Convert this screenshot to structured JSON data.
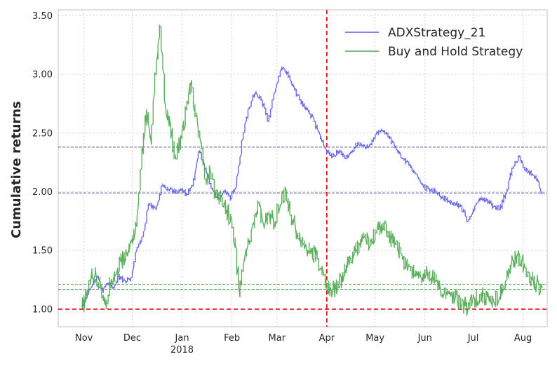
{
  "chart_data": {
    "type": "line",
    "title": "",
    "xlabel": "",
    "ylabel": "Cumulative returns",
    "ylim": [
      0.85,
      3.55
    ],
    "y_ticks": [
      1.0,
      1.5,
      2.0,
      2.5,
      3.0,
      3.5
    ],
    "y_tick_labels": [
      "1.00",
      "1.50",
      "2.00",
      "2.50",
      "3.00",
      "3.50"
    ],
    "x_range": [
      "2017-10-16",
      "2018-08-16"
    ],
    "x_ticks": [
      {
        "date": "2017-11-01",
        "label": "Nov",
        "sublabel": ""
      },
      {
        "date": "2017-12-01",
        "label": "Dec",
        "sublabel": ""
      },
      {
        "date": "2018-01-01",
        "label": "Jan",
        "sublabel": "2018"
      },
      {
        "date": "2018-02-01",
        "label": "Feb",
        "sublabel": ""
      },
      {
        "date": "2018-03-01",
        "label": "Mar",
        "sublabel": ""
      },
      {
        "date": "2018-04-01",
        "label": "Apr",
        "sublabel": ""
      },
      {
        "date": "2018-05-01",
        "label": "May",
        "sublabel": ""
      },
      {
        "date": "2018-06-01",
        "label": "Jun",
        "sublabel": ""
      },
      {
        "date": "2018-07-01",
        "label": "Jul",
        "sublabel": ""
      },
      {
        "date": "2018-08-01",
        "label": "Aug",
        "sublabel": ""
      }
    ],
    "grid": true,
    "legend_position": "top-right",
    "series": [
      {
        "name": "ADXStrategy_21",
        "color": "#5a5ae6",
        "points": [
          [
            "2017-10-31",
            1.0
          ],
          [
            "2017-11-03",
            1.1
          ],
          [
            "2017-11-07",
            1.22
          ],
          [
            "2017-11-10",
            1.28
          ],
          [
            "2017-11-13",
            1.15
          ],
          [
            "2017-11-16",
            1.22
          ],
          [
            "2017-11-20",
            1.18
          ],
          [
            "2017-11-23",
            1.28
          ],
          [
            "2017-11-27",
            1.24
          ],
          [
            "2017-12-01",
            1.27
          ],
          [
            "2017-12-04",
            1.5
          ],
          [
            "2017-12-08",
            1.62
          ],
          [
            "2017-12-12",
            1.9
          ],
          [
            "2017-12-16",
            1.85
          ],
          [
            "2017-12-20",
            2.05
          ],
          [
            "2017-12-24",
            2.02
          ],
          [
            "2017-12-28",
            2.0
          ],
          [
            "2018-01-01",
            2.02
          ],
          [
            "2018-01-04",
            1.98
          ],
          [
            "2018-01-08",
            2.05
          ],
          [
            "2018-01-12",
            2.35
          ],
          [
            "2018-01-16",
            2.2
          ],
          [
            "2018-01-20",
            2.02
          ],
          [
            "2018-01-24",
            1.95
          ],
          [
            "2018-01-28",
            2.0
          ],
          [
            "2018-02-01",
            1.95
          ],
          [
            "2018-02-04",
            2.05
          ],
          [
            "2018-02-08",
            2.45
          ],
          [
            "2018-02-12",
            2.72
          ],
          [
            "2018-02-16",
            2.85
          ],
          [
            "2018-02-20",
            2.78
          ],
          [
            "2018-02-24",
            2.6
          ],
          [
            "2018-02-28",
            2.85
          ],
          [
            "2018-03-04",
            3.05
          ],
          [
            "2018-03-08",
            3.02
          ],
          [
            "2018-03-12",
            2.88
          ],
          [
            "2018-03-16",
            2.78
          ],
          [
            "2018-03-20",
            2.7
          ],
          [
            "2018-03-24",
            2.62
          ],
          [
            "2018-03-28",
            2.48
          ],
          [
            "2018-04-01",
            2.35
          ],
          [
            "2018-04-05",
            2.3
          ],
          [
            "2018-04-09",
            2.35
          ],
          [
            "2018-04-13",
            2.28
          ],
          [
            "2018-04-17",
            2.35
          ],
          [
            "2018-04-21",
            2.42
          ],
          [
            "2018-04-25",
            2.38
          ],
          [
            "2018-04-29",
            2.4
          ],
          [
            "2018-05-03",
            2.5
          ],
          [
            "2018-05-07",
            2.52
          ],
          [
            "2018-05-11",
            2.45
          ],
          [
            "2018-05-15",
            2.35
          ],
          [
            "2018-05-19",
            2.28
          ],
          [
            "2018-05-23",
            2.22
          ],
          [
            "2018-05-27",
            2.15
          ],
          [
            "2018-05-31",
            2.05
          ],
          [
            "2018-06-04",
            2.02
          ],
          [
            "2018-06-08",
            2.0
          ],
          [
            "2018-06-12",
            1.96
          ],
          [
            "2018-06-16",
            1.92
          ],
          [
            "2018-06-20",
            1.9
          ],
          [
            "2018-06-24",
            1.88
          ],
          [
            "2018-06-28",
            1.75
          ],
          [
            "2018-07-02",
            1.85
          ],
          [
            "2018-07-06",
            1.95
          ],
          [
            "2018-07-10",
            1.92
          ],
          [
            "2018-07-14",
            1.88
          ],
          [
            "2018-07-18",
            1.85
          ],
          [
            "2018-07-22",
            2.0
          ],
          [
            "2018-07-26",
            2.2
          ],
          [
            "2018-07-30",
            2.3
          ],
          [
            "2018-08-03",
            2.18
          ],
          [
            "2018-08-07",
            2.15
          ],
          [
            "2018-08-11",
            2.08
          ],
          [
            "2018-08-13",
            1.98
          ]
        ]
      },
      {
        "name": "Buy and Hold Strategy",
        "color": "#4ca64c",
        "points": [
          [
            "2017-10-31",
            1.0
          ],
          [
            "2017-11-03",
            1.1
          ],
          [
            "2017-11-05",
            1.25
          ],
          [
            "2017-11-08",
            1.3
          ],
          [
            "2017-11-12",
            1.2
          ],
          [
            "2017-11-15",
            1.0
          ],
          [
            "2017-11-18",
            1.25
          ],
          [
            "2017-11-21",
            1.3
          ],
          [
            "2017-11-24",
            1.4
          ],
          [
            "2017-11-28",
            1.45
          ],
          [
            "2017-12-01",
            1.6
          ],
          [
            "2017-12-04",
            1.7
          ],
          [
            "2017-12-07",
            2.2
          ],
          [
            "2017-12-10",
            2.7
          ],
          [
            "2017-12-13",
            2.4
          ],
          [
            "2017-12-16",
            3.0
          ],
          [
            "2017-12-19",
            3.4
          ],
          [
            "2017-12-22",
            2.7
          ],
          [
            "2017-12-25",
            2.55
          ],
          [
            "2017-12-28",
            2.3
          ],
          [
            "2018-01-01",
            2.45
          ],
          [
            "2018-01-04",
            2.7
          ],
          [
            "2018-01-07",
            2.95
          ],
          [
            "2018-01-10",
            2.65
          ],
          [
            "2018-01-13",
            2.4
          ],
          [
            "2018-01-16",
            2.1
          ],
          [
            "2018-01-19",
            2.15
          ],
          [
            "2018-01-22",
            2.0
          ],
          [
            "2018-01-26",
            1.95
          ],
          [
            "2018-01-29",
            1.85
          ],
          [
            "2018-02-01",
            1.75
          ],
          [
            "2018-02-04",
            1.5
          ],
          [
            "2018-02-06",
            1.1
          ],
          [
            "2018-02-09",
            1.45
          ],
          [
            "2018-02-12",
            1.55
          ],
          [
            "2018-02-15",
            1.75
          ],
          [
            "2018-02-18",
            1.9
          ],
          [
            "2018-02-21",
            1.7
          ],
          [
            "2018-02-24",
            1.8
          ],
          [
            "2018-02-28",
            1.75
          ],
          [
            "2018-03-04",
            1.9
          ],
          [
            "2018-03-07",
            2.0
          ],
          [
            "2018-03-10",
            1.8
          ],
          [
            "2018-03-14",
            1.65
          ],
          [
            "2018-03-18",
            1.55
          ],
          [
            "2018-03-22",
            1.5
          ],
          [
            "2018-03-26",
            1.45
          ],
          [
            "2018-03-30",
            1.3
          ],
          [
            "2018-04-01",
            1.2
          ],
          [
            "2018-04-04",
            1.15
          ],
          [
            "2018-04-08",
            1.2
          ],
          [
            "2018-04-12",
            1.3
          ],
          [
            "2018-04-16",
            1.42
          ],
          [
            "2018-04-20",
            1.5
          ],
          [
            "2018-04-24",
            1.62
          ],
          [
            "2018-04-28",
            1.55
          ],
          [
            "2018-05-02",
            1.65
          ],
          [
            "2018-05-06",
            1.72
          ],
          [
            "2018-05-10",
            1.62
          ],
          [
            "2018-05-14",
            1.55
          ],
          [
            "2018-05-18",
            1.45
          ],
          [
            "2018-05-22",
            1.38
          ],
          [
            "2018-05-26",
            1.3
          ],
          [
            "2018-05-30",
            1.25
          ],
          [
            "2018-06-04",
            1.32
          ],
          [
            "2018-06-08",
            1.25
          ],
          [
            "2018-06-12",
            1.12
          ],
          [
            "2018-06-16",
            1.15
          ],
          [
            "2018-06-20",
            1.1
          ],
          [
            "2018-06-24",
            1.05
          ],
          [
            "2018-06-28",
            1.02
          ],
          [
            "2018-07-02",
            1.08
          ],
          [
            "2018-07-06",
            1.12
          ],
          [
            "2018-07-10",
            1.1
          ],
          [
            "2018-07-14",
            1.05
          ],
          [
            "2018-07-18",
            1.12
          ],
          [
            "2018-07-22",
            1.25
          ],
          [
            "2018-07-26",
            1.4
          ],
          [
            "2018-07-30",
            1.45
          ],
          [
            "2018-08-03",
            1.35
          ],
          [
            "2018-08-07",
            1.25
          ],
          [
            "2018-08-11",
            1.2
          ],
          [
            "2018-08-13",
            1.18
          ]
        ]
      }
    ],
    "reference_lines": [
      {
        "type": "horizontal",
        "y": 1.0,
        "color": "#e00000",
        "style": "dashed"
      },
      {
        "type": "vertical",
        "x": "2018-04-01",
        "color": "#e00000",
        "style": "dashed"
      },
      {
        "type": "horizontal",
        "y": 2.38,
        "color": "#1a1a80",
        "style": "dashed"
      },
      {
        "type": "horizontal",
        "y": 1.99,
        "color": "#1a1a80",
        "style": "dashed"
      },
      {
        "type": "horizontal",
        "y": 1.21,
        "color": "#1a801a",
        "style": "dashed"
      },
      {
        "type": "horizontal",
        "y": 1.17,
        "color": "#1a801a",
        "style": "dashed"
      }
    ]
  }
}
